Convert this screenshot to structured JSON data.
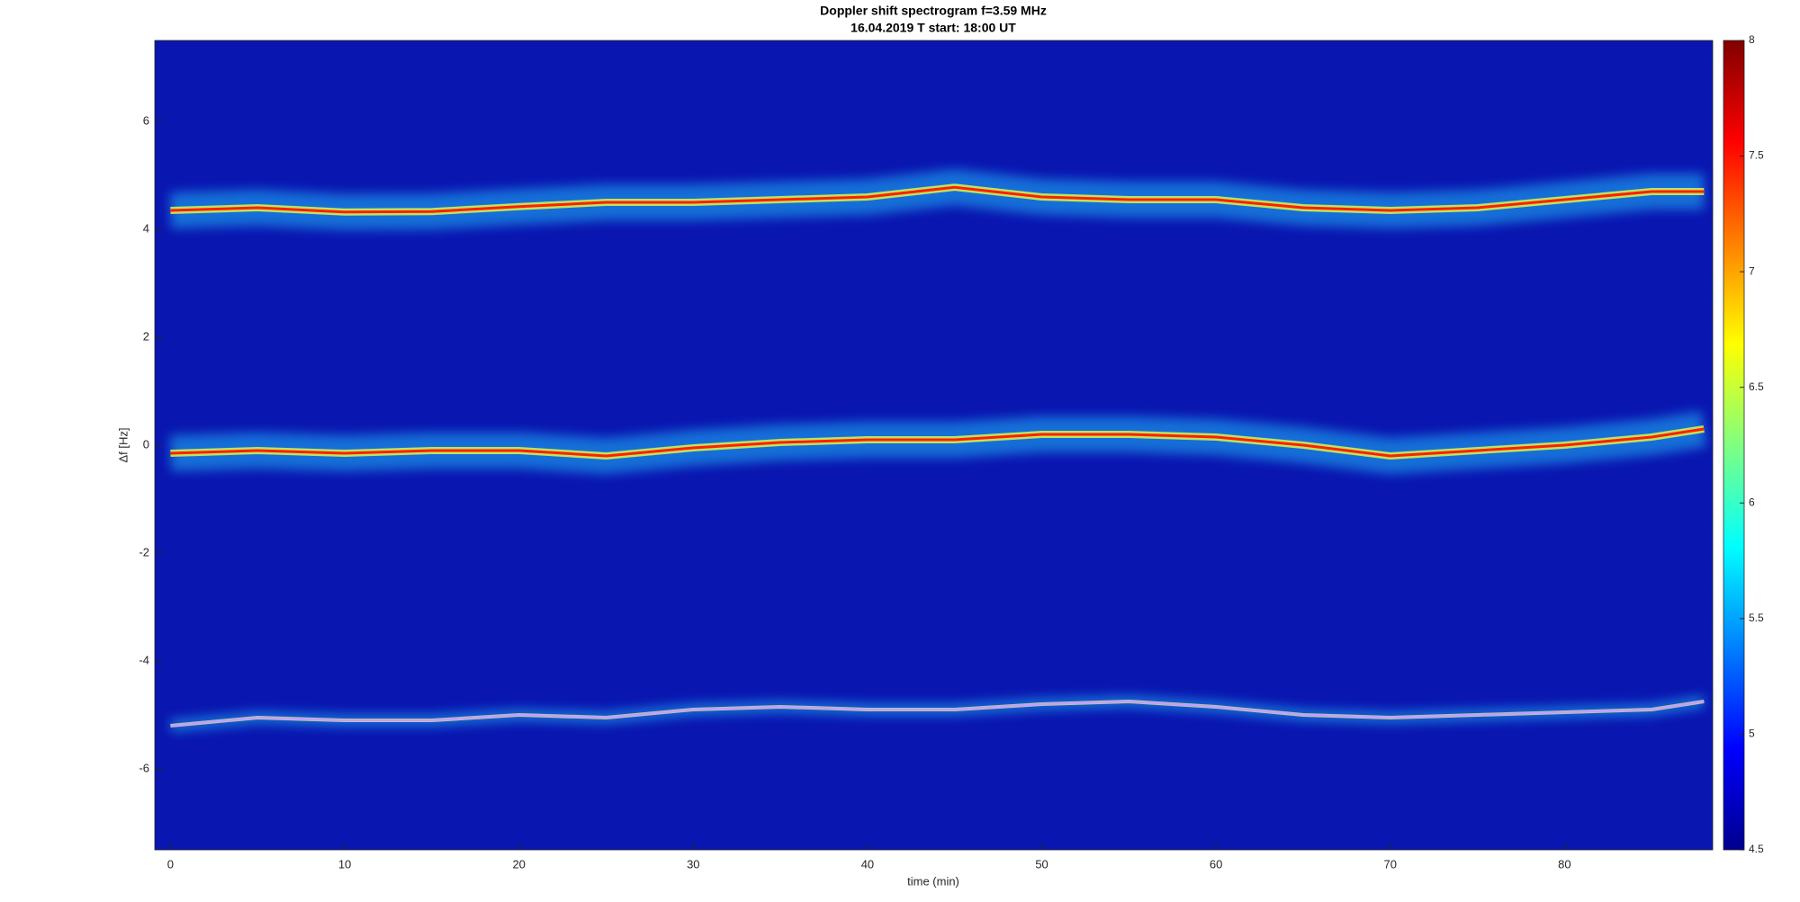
{
  "chart_data": {
    "type": "spectrogram",
    "title": "Doppler shift spectrogram f=3.59 MHz",
    "subtitle": "16.04.2019    T start: 18:00 UT",
    "x_label": "time (min)",
    "y_label": "Δf [Hz]",
    "xlim": [
      -0.9,
      88.5
    ],
    "ylim": [
      -7.5,
      7.5
    ],
    "xticks": [
      0,
      10,
      20,
      30,
      40,
      50,
      60,
      70,
      80
    ],
    "yticks": [
      -6,
      -4,
      -2,
      0,
      2,
      4,
      6
    ],
    "colormap": "jet",
    "clim": [
      4.5,
      8
    ],
    "cticks": [
      4.5,
      5,
      5.5,
      6,
      6.5,
      7,
      7.5,
      8
    ],
    "x": [
      0,
      5,
      10,
      15,
      20,
      25,
      30,
      35,
      40,
      45,
      50,
      55,
      60,
      65,
      70,
      75,
      80,
      85,
      88
    ],
    "series": [
      {
        "color": "#ff2000",
        "values": [
          4.35,
          4.4,
          4.32,
          4.33,
          4.42,
          4.5,
          4.5,
          4.55,
          4.6,
          4.78,
          4.6,
          4.55,
          4.55,
          4.4,
          4.35,
          4.4,
          4.55,
          4.7,
          4.7
        ]
      },
      {
        "color": "#ff2000",
        "values": [
          -0.15,
          -0.1,
          -0.15,
          -0.1,
          -0.1,
          -0.2,
          -0.05,
          0.05,
          0.1,
          0.1,
          0.2,
          0.2,
          0.15,
          0,
          -0.2,
          -0.1,
          0,
          0.15,
          0.3
        ]
      },
      {
        "color": "#c0a0ff",
        "values": [
          -5.2,
          -5.05,
          -5.1,
          -5.1,
          -5.0,
          -5.05,
          -4.9,
          -4.85,
          -4.9,
          -4.9,
          -4.8,
          -4.75,
          -4.85,
          -5.0,
          -5.05,
          -5.0,
          -4.95,
          -4.9,
          -4.75
        ]
      }
    ]
  }
}
